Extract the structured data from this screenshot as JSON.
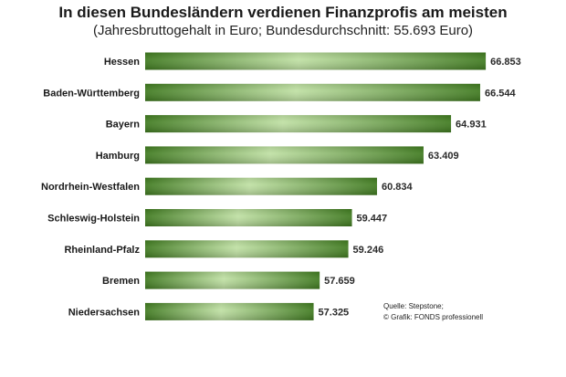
{
  "chart_data": {
    "type": "bar",
    "orientation": "horizontal",
    "title": "In diesen Bundesländern verdienen Finanzprofis am meisten",
    "subtitle": "(Jahresbruttogehalt in Euro; Bundesdurchschnitt: 55.693 Euro)",
    "categories": [
      "Hessen",
      "Baden-Württemberg",
      "Bayern",
      "Hamburg",
      "Nordrhein-Westfalen",
      "Schleswig-Holstein",
      "Rheinland-Pfalz",
      "Bremen",
      "Niedersachsen"
    ],
    "values": [
      66853,
      66544,
      64931,
      63409,
      60834,
      59447,
      59246,
      57659,
      57325
    ],
    "value_labels": [
      "66.853",
      "66.544",
      "64.931",
      "63.409",
      "60.834",
      "59.447",
      "59.246",
      "57.659",
      "57.325"
    ],
    "xlim": [
      48000,
      67000
    ],
    "grid": false,
    "legend": "none",
    "colors": {
      "bar_dark": "#3f7a1f",
      "bar_mid": "#6fa944",
      "bar_light": "#bfe0a3"
    }
  },
  "source": {
    "line1": "Quelle: Stepstone;",
    "line2": "© Grafik: FONDS professionell"
  }
}
